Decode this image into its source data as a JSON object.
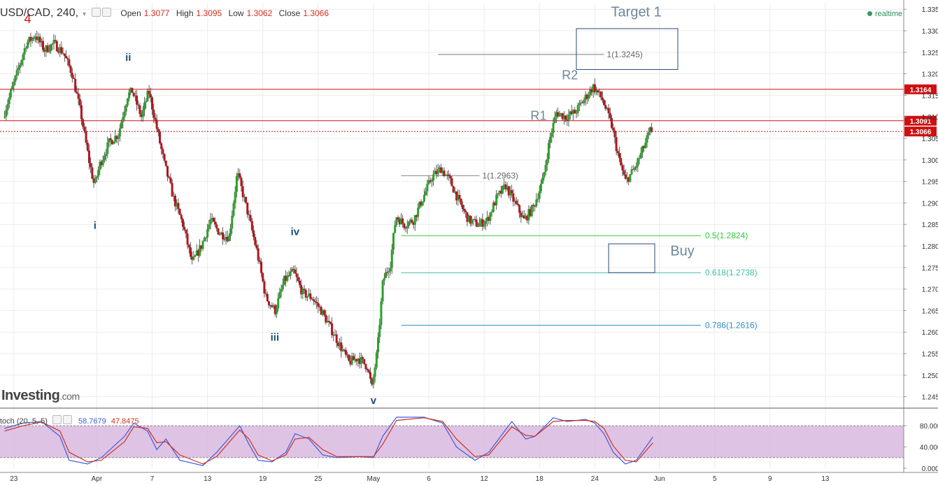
{
  "header": {
    "symbol": "USD/CAD, 240,",
    "open_label": "Open",
    "open": "1.3077",
    "high_label": "High",
    "high": "1.3095",
    "low_label": "Low",
    "low": "1.3062",
    "close_label": "Close",
    "close": "1.3066",
    "realtime": "realtime"
  },
  "logo": {
    "main": "Investing",
    "suffix": ".com"
  },
  "stoch": {
    "label": "toch (20, 5, 5)",
    "k": "58.7679",
    "d": "47.8475"
  },
  "colors": {
    "up": "#2ca02c",
    "down": "#b0171f",
    "fib_green": "#2ecc40",
    "fib_teal": "#3fbf9f",
    "fib_blue": "#2f8fc0",
    "resistance": "#d01010",
    "box": "#2c4a7a",
    "stoch_band": "#d9b8df"
  },
  "chart_data": [
    {
      "type": "candlestick",
      "symbol": "USD/CAD",
      "timeframe": "240",
      "y_ticks": [
        "1.3350",
        "1.3300",
        "1.3250",
        "1.3200",
        "1.3150",
        "1.3100",
        "1.3050",
        "1.3000",
        "1.2950",
        "1.2900",
        "1.2850",
        "1.2800",
        "1.2750",
        "1.2700",
        "1.2650",
        "1.2600",
        "1.2550",
        "1.2500",
        "1.2450"
      ],
      "ylim": [
        1.2425,
        1.3365
      ],
      "x_labels": [
        "23",
        "Apr",
        "7",
        "13",
        "19",
        "25",
        "May",
        "6",
        "12",
        "18",
        "24",
        "Jun",
        "5",
        "9",
        "13"
      ],
      "x_label_days": [
        -8,
        1,
        7,
        13,
        19,
        25,
        31,
        37,
        43,
        49,
        55,
        62,
        68,
        74,
        80
      ],
      "xlim": [
        -9.5,
        88.5
      ],
      "price_anchors": [
        {
          "day": -9,
          "price": 1.31
        },
        {
          "day": -7.5,
          "price": 1.32
        },
        {
          "day": -6.5,
          "price": 1.327
        },
        {
          "day": -5.5,
          "price": 1.329
        },
        {
          "day": -4.5,
          "price": 1.3255
        },
        {
          "day": -3.5,
          "price": 1.327
        },
        {
          "day": -2.5,
          "price": 1.325
        },
        {
          "day": -1.5,
          "price": 1.32
        },
        {
          "day": -0.5,
          "price": 1.31
        },
        {
          "day": 0.3,
          "price": 1.3
        },
        {
          "day": 0.9,
          "price": 1.294
        },
        {
          "day": 1.5,
          "price": 1.299
        },
        {
          "day": 2.5,
          "price": 1.304
        },
        {
          "day": 3.5,
          "price": 1.306
        },
        {
          "day": 4.5,
          "price": 1.315
        },
        {
          "day": 5.0,
          "price": 1.316
        },
        {
          "day": 6.0,
          "price": 1.31
        },
        {
          "day": 6.8,
          "price": 1.316
        },
        {
          "day": 7.6,
          "price": 1.308
        },
        {
          "day": 8.5,
          "price": 1.299
        },
        {
          "day": 9.5,
          "price": 1.291
        },
        {
          "day": 10.5,
          "price": 1.285
        },
        {
          "day": 11.5,
          "price": 1.276
        },
        {
          "day": 12.5,
          "price": 1.28
        },
        {
          "day": 13.5,
          "price": 1.286
        },
        {
          "day": 14.5,
          "price": 1.283
        },
        {
          "day": 15.5,
          "price": 1.282
        },
        {
          "day": 16.4,
          "price": 1.297
        },
        {
          "day": 17.5,
          "price": 1.288
        },
        {
          "day": 18.5,
          "price": 1.279
        },
        {
          "day": 19.5,
          "price": 1.268
        },
        {
          "day": 20.5,
          "price": 1.265
        },
        {
          "day": 21.5,
          "price": 1.272
        },
        {
          "day": 22.5,
          "price": 1.274
        },
        {
          "day": 23.5,
          "price": 1.269
        },
        {
          "day": 24.5,
          "price": 1.268
        },
        {
          "day": 25.5,
          "price": 1.265
        },
        {
          "day": 26.5,
          "price": 1.261
        },
        {
          "day": 27.5,
          "price": 1.257
        },
        {
          "day": 28.5,
          "price": 1.253
        },
        {
          "day": 29.5,
          "price": 1.254
        },
        {
          "day": 30.5,
          "price": 1.252
        },
        {
          "day": 31.0,
          "price": 1.247
        },
        {
          "day": 31.6,
          "price": 1.256
        },
        {
          "day": 32.2,
          "price": 1.272
        },
        {
          "day": 33.0,
          "price": 1.276
        },
        {
          "day": 33.6,
          "price": 1.287
        },
        {
          "day": 34.5,
          "price": 1.285
        },
        {
          "day": 35.5,
          "price": 1.286
        },
        {
          "day": 36.5,
          "price": 1.291
        },
        {
          "day": 37.5,
          "price": 1.296
        },
        {
          "day": 38.5,
          "price": 1.298
        },
        {
          "day": 39.5,
          "price": 1.295
        },
        {
          "day": 40.5,
          "price": 1.29
        },
        {
          "day": 41.5,
          "price": 1.286
        },
        {
          "day": 42.5,
          "price": 1.285
        },
        {
          "day": 43.5,
          "price": 1.286
        },
        {
          "day": 44.5,
          "price": 1.291
        },
        {
          "day": 45.5,
          "price": 1.294
        },
        {
          "day": 46.5,
          "price": 1.29
        },
        {
          "day": 47.5,
          "price": 1.286
        },
        {
          "day": 48.5,
          "price": 1.289
        },
        {
          "day": 49.5,
          "price": 1.295
        },
        {
          "day": 50.3,
          "price": 1.305
        },
        {
          "day": 51.0,
          "price": 1.311
        },
        {
          "day": 52.0,
          "price": 1.31
        },
        {
          "day": 53.0,
          "price": 1.311
        },
        {
          "day": 54.0,
          "price": 1.314
        },
        {
          "day": 55.0,
          "price": 1.317
        },
        {
          "day": 56.0,
          "price": 1.314
        },
        {
          "day": 57.0,
          "price": 1.308
        },
        {
          "day": 57.8,
          "price": 1.3
        },
        {
          "day": 58.5,
          "price": 1.295
        },
        {
          "day": 59.5,
          "price": 1.298
        },
        {
          "day": 60.5,
          "price": 1.303
        },
        {
          "day": 61.3,
          "price": 1.3075
        }
      ],
      "annotations": [
        {
          "text": "4",
          "day": -6.5,
          "price": 1.3318,
          "color": "#d01010"
        },
        {
          "text": "i",
          "day": 0.8,
          "price": 1.284,
          "color": "#1f4e79"
        },
        {
          "text": "ii",
          "day": 4.4,
          "price": 1.323,
          "color": "#1f4e79"
        },
        {
          "text": "iii",
          "day": 20.3,
          "price": 1.258,
          "color": "#1f4e79"
        },
        {
          "text": "iv",
          "day": 22.5,
          "price": 1.2825,
          "color": "#1f4e79"
        },
        {
          "text": "v",
          "day": 31.0,
          "price": 1.2433,
          "color": "#1f4e79"
        },
        {
          "text": "R1",
          "day": 48.9,
          "price": 1.3093,
          "color": "#6d8799"
        },
        {
          "text": "R2",
          "day": 52.3,
          "price": 1.3187,
          "color": "#6d8799"
        },
        {
          "text": "Target 1",
          "day": 59.5,
          "price": 1.3333,
          "color": "#6d8799"
        },
        {
          "text": "Buy",
          "day": 64.5,
          "price": 1.2778,
          "color": "#6d8799"
        }
      ],
      "target_box": {
        "day_from": 53.0,
        "day_to": 64.0,
        "price_from": 1.3305,
        "price_to": 1.321
      },
      "buy_box": {
        "day_from": 56.5,
        "day_to": 61.5,
        "price_from": 1.2805,
        "price_to": 1.2738
      },
      "projection_lines": [
        {
          "label": "1(1.3245)",
          "price": 1.3245,
          "day_from": 38.0,
          "day_to": 56.0
        },
        {
          "label": "1(1.2963)",
          "price": 1.2963,
          "day_from": 34.0,
          "day_to": 42.5
        }
      ],
      "fib_lines": [
        {
          "label": "0.5(1.2824)",
          "price": 1.2824,
          "color_key": "fib_green",
          "day_from": 34.0,
          "day_to": 66.5
        },
        {
          "label": "0.618(1.2738)",
          "price": 1.2738,
          "color_key": "fib_teal",
          "day_from": 34.0,
          "day_to": 66.5
        },
        {
          "label": "0.786(1.2616)",
          "price": 1.2616,
          "color_key": "fib_blue",
          "day_from": 34.0,
          "day_to": 66.5
        }
      ],
      "resistance_lines": [
        {
          "price": 1.3164,
          "label": "1.3164",
          "style": "solid"
        },
        {
          "price": 1.3091,
          "label": "1.3091",
          "style": "solid"
        },
        {
          "price": 1.3066,
          "label": "1.3066",
          "style": "dotted"
        }
      ]
    },
    {
      "type": "line",
      "name": "Stochastic",
      "y_ticks": [
        "80.0000",
        "40.0000",
        "0.0000"
      ],
      "ylim": [
        0,
        100
      ],
      "band": [
        20,
        80
      ],
      "k_anchors": [
        {
          "day": -9,
          "v": 75
        },
        {
          "day": -7,
          "v": 85
        },
        {
          "day": -5,
          "v": 88
        },
        {
          "day": -3,
          "v": 60
        },
        {
          "day": -2,
          "v": 15
        },
        {
          "day": 0,
          "v": 8
        },
        {
          "day": 1.5,
          "v": 20
        },
        {
          "day": 4,
          "v": 60
        },
        {
          "day": 5,
          "v": 85
        },
        {
          "day": 6.5,
          "v": 70
        },
        {
          "day": 7.5,
          "v": 35
        },
        {
          "day": 8.5,
          "v": 55
        },
        {
          "day": 10,
          "v": 15
        },
        {
          "day": 12.5,
          "v": 5
        },
        {
          "day": 14,
          "v": 30
        },
        {
          "day": 16.5,
          "v": 80
        },
        {
          "day": 17.5,
          "v": 45
        },
        {
          "day": 18.5,
          "v": 15
        },
        {
          "day": 20,
          "v": 12
        },
        {
          "day": 21.5,
          "v": 30
        },
        {
          "day": 22.5,
          "v": 65
        },
        {
          "day": 24,
          "v": 55
        },
        {
          "day": 25.5,
          "v": 25
        },
        {
          "day": 27,
          "v": 20
        },
        {
          "day": 29.5,
          "v": 22
        },
        {
          "day": 31,
          "v": 20
        },
        {
          "day": 32,
          "v": 60
        },
        {
          "day": 33.5,
          "v": 96
        },
        {
          "day": 36.5,
          "v": 96
        },
        {
          "day": 38.5,
          "v": 85
        },
        {
          "day": 40,
          "v": 40
        },
        {
          "day": 42,
          "v": 15
        },
        {
          "day": 43.5,
          "v": 30
        },
        {
          "day": 46,
          "v": 88
        },
        {
          "day": 47.5,
          "v": 55
        },
        {
          "day": 48.5,
          "v": 60
        },
        {
          "day": 50.5,
          "v": 95
        },
        {
          "day": 52,
          "v": 88
        },
        {
          "day": 54,
          "v": 92
        },
        {
          "day": 55,
          "v": 85
        },
        {
          "day": 56,
          "v": 65
        },
        {
          "day": 57,
          "v": 30
        },
        {
          "day": 58.3,
          "v": 8
        },
        {
          "day": 59.5,
          "v": 15
        },
        {
          "day": 61.3,
          "v": 58.7679
        }
      ],
      "d_anchors": [
        {
          "day": -9,
          "v": 70
        },
        {
          "day": -7,
          "v": 80
        },
        {
          "day": -5,
          "v": 87
        },
        {
          "day": -3,
          "v": 70
        },
        {
          "day": -2,
          "v": 30
        },
        {
          "day": 0,
          "v": 12
        },
        {
          "day": 1.5,
          "v": 15
        },
        {
          "day": 4,
          "v": 50
        },
        {
          "day": 5,
          "v": 78
        },
        {
          "day": 6.5,
          "v": 75
        },
        {
          "day": 7.5,
          "v": 48
        },
        {
          "day": 8.5,
          "v": 50
        },
        {
          "day": 10,
          "v": 25
        },
        {
          "day": 12.5,
          "v": 8
        },
        {
          "day": 14,
          "v": 22
        },
        {
          "day": 16.5,
          "v": 72
        },
        {
          "day": 17.5,
          "v": 55
        },
        {
          "day": 18.5,
          "v": 25
        },
        {
          "day": 20,
          "v": 14
        },
        {
          "day": 21.5,
          "v": 25
        },
        {
          "day": 22.5,
          "v": 55
        },
        {
          "day": 24,
          "v": 58
        },
        {
          "day": 25.5,
          "v": 35
        },
        {
          "day": 27,
          "v": 22
        },
        {
          "day": 29.5,
          "v": 22
        },
        {
          "day": 31,
          "v": 22
        },
        {
          "day": 32,
          "v": 45
        },
        {
          "day": 33.5,
          "v": 90
        },
        {
          "day": 36.5,
          "v": 95
        },
        {
          "day": 38.5,
          "v": 88
        },
        {
          "day": 40,
          "v": 55
        },
        {
          "day": 42,
          "v": 22
        },
        {
          "day": 43.5,
          "v": 25
        },
        {
          "day": 46,
          "v": 78
        },
        {
          "day": 47.5,
          "v": 62
        },
        {
          "day": 48.5,
          "v": 60
        },
        {
          "day": 50.5,
          "v": 88
        },
        {
          "day": 52,
          "v": 90
        },
        {
          "day": 54,
          "v": 90
        },
        {
          "day": 55,
          "v": 88
        },
        {
          "day": 56,
          "v": 75
        },
        {
          "day": 57,
          "v": 42
        },
        {
          "day": 58.3,
          "v": 15
        },
        {
          "day": 59.5,
          "v": 12
        },
        {
          "day": 61.3,
          "v": 47.8475
        }
      ]
    }
  ]
}
